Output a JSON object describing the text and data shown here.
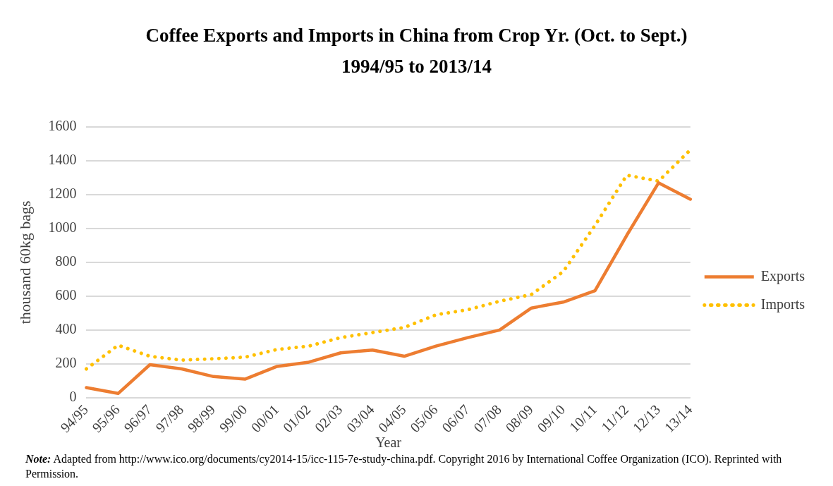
{
  "chart_data": {
    "type": "line",
    "title": "Coffee Exports and Imports in China from Crop Yr. (Oct. to Sept.)\n1994/95 to 2013/14",
    "xlabel": "Year",
    "ylabel": "thousand 60kg bags",
    "categories": [
      "94/95",
      "95/96",
      "96/97",
      "97/98",
      "98/99",
      "99/00",
      "00/01",
      "01/02",
      "02/03",
      "03/04",
      "04/05",
      "05/06",
      "06/07",
      "07/08",
      "08/09",
      "09/10",
      "10/11",
      "11/12",
      "12/13",
      "13/14"
    ],
    "series": [
      {
        "name": "Exports",
        "color": "#ed7d31",
        "line_style": "solid",
        "values": [
          60,
          25,
          195,
          170,
          125,
          110,
          185,
          210,
          265,
          282,
          245,
          305,
          355,
          400,
          530,
          565,
          632,
          960,
          1270,
          1173
        ]
      },
      {
        "name": "Imports",
        "color": "#ffc000",
        "line_style": "dotted",
        "values": [
          170,
          310,
          245,
          222,
          230,
          240,
          285,
          305,
          355,
          385,
          415,
          490,
          520,
          570,
          610,
          745,
          1018,
          1315,
          1280,
          1465
        ]
      }
    ],
    "ylim": [
      0,
      1600
    ],
    "yticks": [
      0,
      200,
      400,
      600,
      800,
      1000,
      1200,
      1400,
      1600
    ],
    "grid": "y",
    "legend": "right",
    "marker": "none",
    "annotations": [
      "Note: Adapted from http://www.ico.org/documents/cy2014-15/icc-115-7e-study-china.pdf. Copyright 2016 by International Coffee Organization (ICO).  Reprinted with Permission."
    ]
  }
}
